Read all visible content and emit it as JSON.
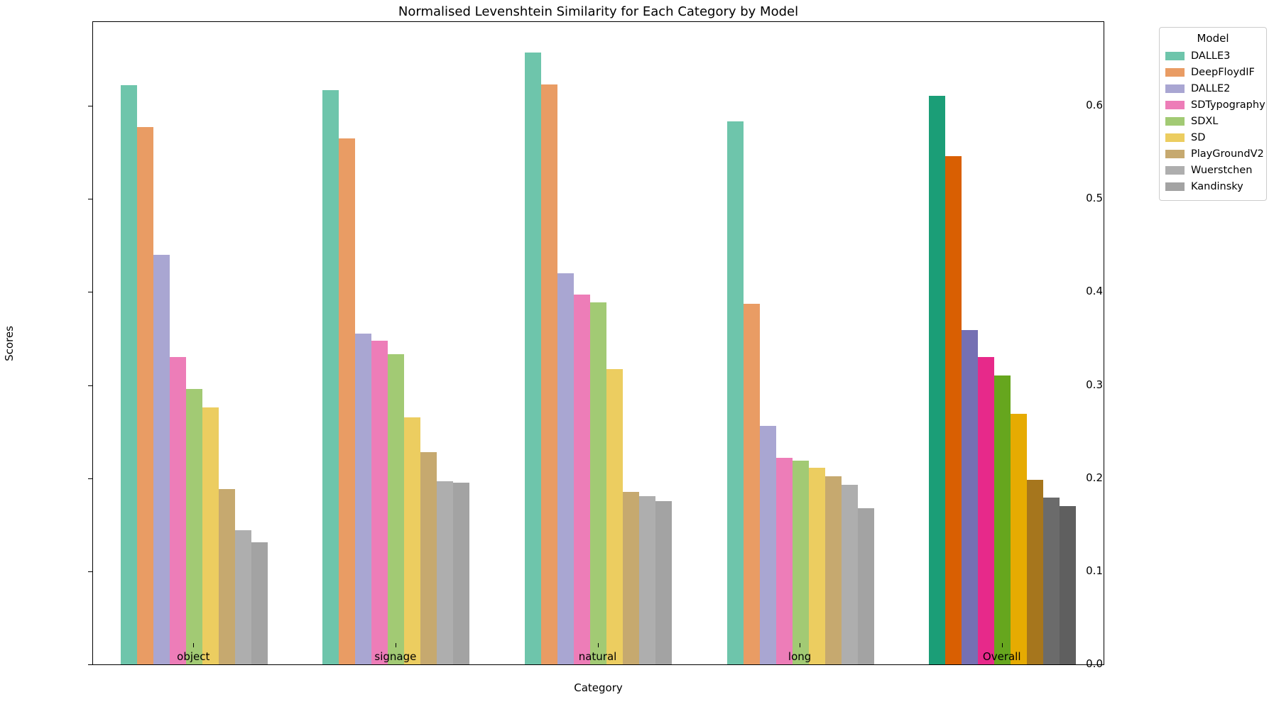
{
  "chart_data": {
    "type": "bar",
    "title": "Normalised Levenshtein Similarity for Each Category by Model",
    "xlabel": "Category",
    "ylabel": "Scores",
    "legend_title": "Model",
    "legend_position": "upper right, outside plot",
    "grid": false,
    "ylim": [
      0,
      0.69
    ],
    "yticks": [
      0.0,
      0.1,
      0.2,
      0.3,
      0.4,
      0.5,
      0.6
    ],
    "ytick_labels": [
      "0.0",
      "0.1",
      "0.2",
      "0.3",
      "0.4",
      "0.5",
      "0.6"
    ],
    "categories": [
      "object",
      "signage",
      "natural",
      "long",
      "Overall"
    ],
    "series": [
      {
        "name": "DALLE3",
        "color": "#6ec5ab",
        "overall_color": "#1b9e77",
        "values": [
          0.622,
          0.617,
          0.657,
          0.583,
          0.611
        ]
      },
      {
        "name": "DeepFloydIF",
        "color": "#e99c64",
        "overall_color": "#d95f02",
        "values": [
          0.577,
          0.565,
          0.623,
          0.387,
          0.546
        ]
      },
      {
        "name": "DALLE2",
        "color": "#a9a6d2",
        "overall_color": "#7570b3",
        "values": [
          0.44,
          0.355,
          0.42,
          0.256,
          0.359
        ]
      },
      {
        "name": "SDTypography",
        "color": "#ed7db8",
        "overall_color": "#e7298a",
        "values": [
          0.33,
          0.348,
          0.397,
          0.222,
          0.33
        ]
      },
      {
        "name": "SDXL",
        "color": "#a2ca74",
        "overall_color": "#66a61e",
        "values": [
          0.296,
          0.333,
          0.389,
          0.219,
          0.31
        ]
      },
      {
        "name": "SD",
        "color": "#eccd60",
        "overall_color": "#e6ab02",
        "values": [
          0.276,
          0.265,
          0.317,
          0.211,
          0.269
        ]
      },
      {
        "name": "PlayGroundV2",
        "color": "#c6a96f",
        "overall_color": "#a6761d",
        "values": [
          0.188,
          0.228,
          0.185,
          0.202,
          0.198
        ]
      },
      {
        "name": "Wuerstchen",
        "color": "#aeaeae",
        "overall_color": "#6b6b6b",
        "values": [
          0.144,
          0.197,
          0.181,
          0.193,
          0.179
        ]
      },
      {
        "name": "Kandinsky",
        "color": "#a3a3a3",
        "overall_color": "#5f5f5f",
        "values": [
          0.131,
          0.195,
          0.175,
          0.168,
          0.17
        ]
      }
    ]
  }
}
